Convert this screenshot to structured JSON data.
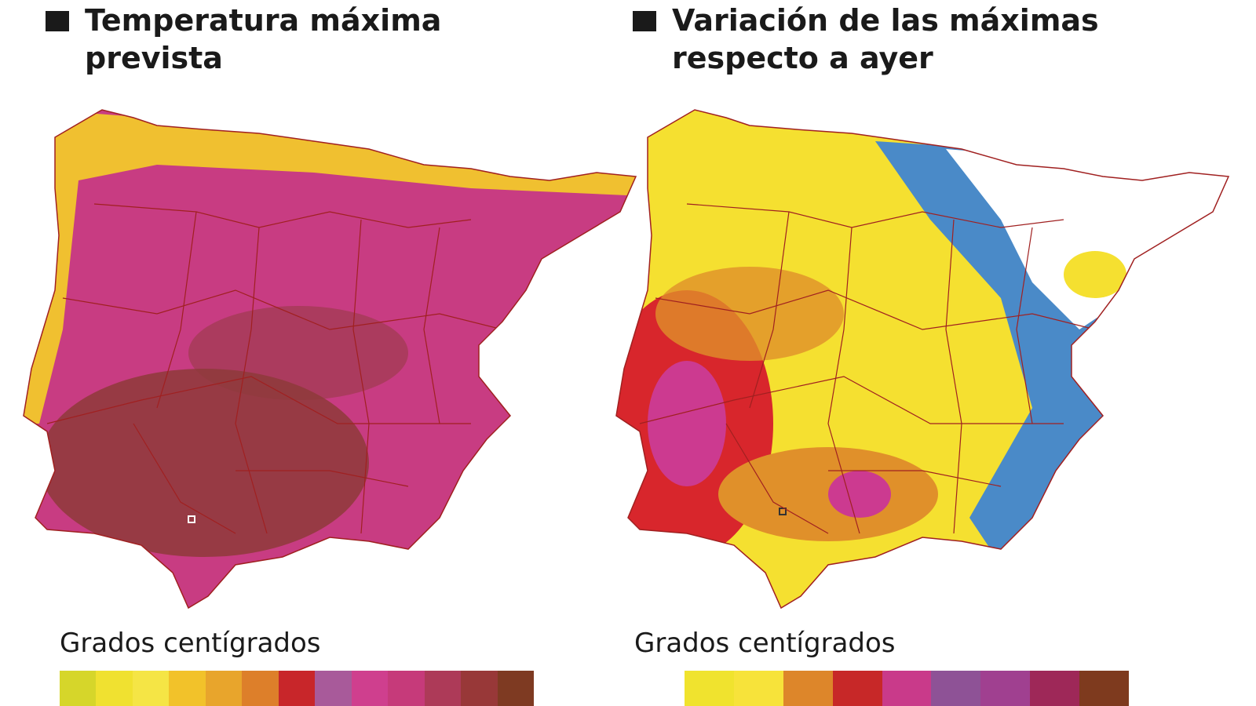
{
  "panels": [
    {
      "title_line1": "Temperatura máxima",
      "title_line2": "prevista",
      "legend_label": "Grados centígrados",
      "legend_colors": [
        "#d6d62a",
        "#f0e130",
        "#f5e545",
        "#f2c22a",
        "#e8a52c",
        "#dd7f2a",
        "#c8262a",
        "#a85a9a",
        "#cf3f8e",
        "#c63a7a",
        "#ad3a58",
        "#983838",
        "#7e3a22"
      ],
      "map_colors": {
        "base": "#c83c82",
        "hot": "#8e3a3a",
        "coast": "#f0c030",
        "border": "#a02020"
      }
    },
    {
      "title_line1": "Variación de las máximas",
      "title_line2": "respecto a ayer",
      "legend_label": "Grados centígrados",
      "legend_colors": [
        "#f0e32e",
        "#f7e33a",
        "#dd862a",
        "#c72828",
        "#c93a8a",
        "#8e5296",
        "#a04090",
        "#9e2858",
        "#7e3a1e"
      ],
      "map_colors": {
        "base": "#f5e030",
        "orange": "#e0902a",
        "red": "#d8262c",
        "magenta": "#cc3a90",
        "blue": "#4a8ac8",
        "white": "#ffffff",
        "border": "#a02020"
      }
    }
  ]
}
